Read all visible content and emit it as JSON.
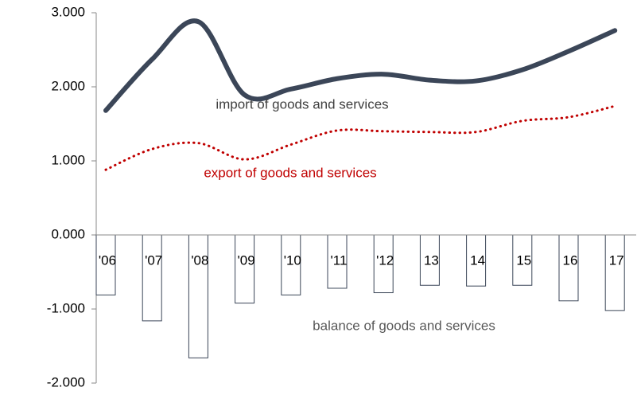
{
  "chart_data": {
    "type": "combo",
    "categories": [
      "'06",
      "'07",
      "'08",
      "'09",
      "'10",
      "'11",
      "'12",
      "13",
      "14",
      "15",
      "16",
      "17"
    ],
    "series": [
      {
        "name": "import of goods and services",
        "type": "line",
        "color": "#3b4658",
        "values": [
          1.68,
          2.37,
          2.88,
          1.89,
          1.97,
          2.11,
          2.17,
          2.09,
          2.08,
          2.23,
          2.48,
          2.76
        ]
      },
      {
        "name": "export of goods and services",
        "type": "line",
        "style": "dotted",
        "color": "#c00000",
        "values": [
          0.88,
          1.16,
          1.24,
          1.02,
          1.22,
          1.41,
          1.4,
          1.39,
          1.39,
          1.54,
          1.59,
          1.74
        ]
      },
      {
        "name": "balance of goods and services",
        "type": "bar",
        "color": "#ffffff",
        "values": [
          -0.81,
          -1.16,
          -1.66,
          -0.92,
          -0.81,
          -0.72,
          -0.78,
          -0.68,
          -0.69,
          -0.68,
          -0.89,
          -1.02
        ]
      }
    ],
    "ylim": [
      -2,
      3
    ],
    "yticks": [
      {
        "value": -2,
        "label": "-2.000"
      },
      {
        "value": -1,
        "label": "-1.000"
      },
      {
        "value": 0,
        "label": "0.000"
      },
      {
        "value": 1,
        "label": "1.000"
      },
      {
        "value": 2,
        "label": "2.000"
      },
      {
        "value": 3,
        "label": "3.000"
      }
    ],
    "grid": false
  }
}
